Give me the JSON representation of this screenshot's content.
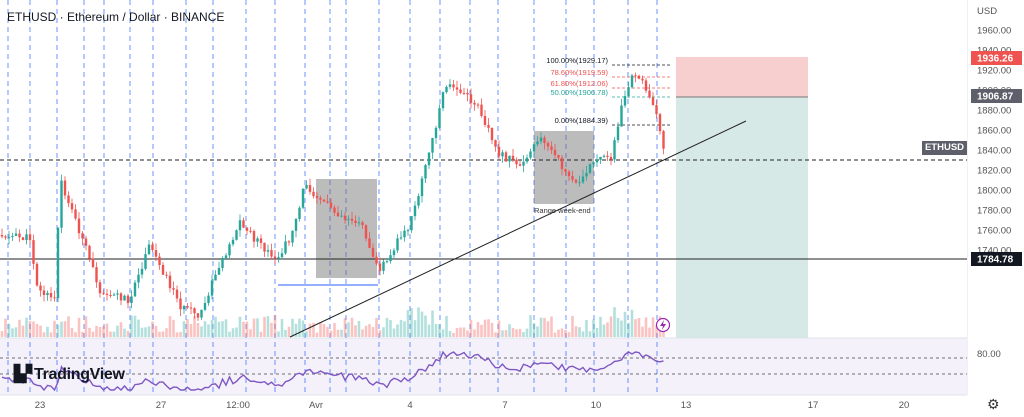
{
  "header": {
    "title": "ETHUSD · Ethereum / Dollar · BINANCE",
    "currency": "USD"
  },
  "price_axis": {
    "ticks": [
      "1960.00",
      "1940.00",
      "1920.00",
      "1900.00",
      "1880.00",
      "1860.00",
      "1840.00",
      "1820.00",
      "1800.00",
      "1780.00",
      "1760.00",
      "1740.00"
    ],
    "tags": {
      "stop": "1936.26",
      "entry": "1906.87",
      "symbol": "ETHUSD",
      "level": "1784.78"
    }
  },
  "rsi_axis": {
    "tick": "80.00"
  },
  "time_axis": [
    "23",
    "27",
    "12:00",
    "Avr",
    "4",
    "7",
    "10",
    "13",
    "17",
    "20"
  ],
  "fib": [
    "100.00%(1929.17)",
    "78.60%(1919.59)",
    "61.80%(1912.06)",
    "50.00%(1906.78)",
    "0.00%(1884.39)"
  ],
  "annotations": {
    "range_label": "Range week-end"
  },
  "branding": {
    "logo_text": "TradingView"
  },
  "colors": {
    "up": "#26a69a",
    "down": "#ef5350",
    "rsi": "#7e57c2",
    "vline": "#2962ff"
  }
}
